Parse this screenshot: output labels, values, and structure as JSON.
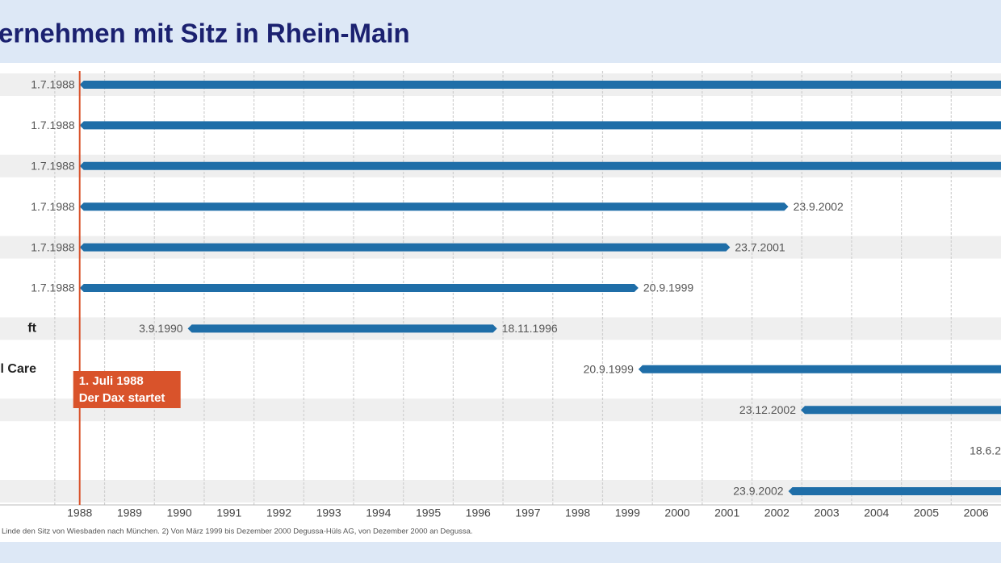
{
  "chart_data": {
    "type": "timeline",
    "title": "ernehmen mit Sitz in Rhein-Main",
    "footnote": "Linde den Sitz von Wiesbaden nach München.  2) Von März 1999 bis Dezember 2000 Degussa-Hüls AG, von Dezember 2000 an Degussa.",
    "categories": [
      null,
      null,
      null,
      null,
      null,
      null,
      "ft",
      "l Care",
      null,
      null,
      null
    ],
    "starts": [
      1988.5,
      1988.5,
      1988.5,
      1988.5,
      1988.5,
      1988.5,
      1990.67,
      1999.72,
      2002.98,
      null,
      2002.73
    ],
    "start_labels": [
      "1.7.1988",
      "1.7.1988",
      "1.7.1988",
      "1.7.1988",
      "1.7.1988",
      "1.7.1988",
      "3.9.1990",
      "20.9.1999",
      "23.12.2002",
      "18.6.2",
      "23.9.2002"
    ],
    "ends": [
      null,
      null,
      null,
      2002.73,
      2001.56,
      1999.72,
      1996.88,
      null,
      null,
      null,
      null
    ],
    "end_labels": [
      null,
      null,
      null,
      "23.9.2002",
      "23.7.2001",
      "20.9.1999",
      "18.11.1996",
      null,
      null,
      null,
      null
    ],
    "color": "#1f6ea8",
    "xlim": [
      1986.9,
      2007.0
    ],
    "xticks": [
      1988,
      1989,
      1990,
      1991,
      1992,
      1993,
      1994,
      1995,
      1996,
      1997,
      1998,
      1999,
      2000,
      2001,
      2002,
      2003,
      2004,
      2005,
      2006
    ],
    "grid": true,
    "annotation": {
      "x": 1988.5,
      "color": "#d9532b",
      "lines": [
        "1. Juli 1988",
        "Der Dax startet"
      ]
    }
  }
}
